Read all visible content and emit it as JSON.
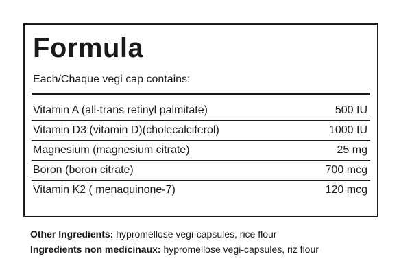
{
  "formula": {
    "title": "Formula",
    "subtitle": "Each/Chaque vegi cap contains:",
    "rows": [
      {
        "name": "Vitamin A (all-trans retinyl palmitate)",
        "amount": "500 IU"
      },
      {
        "name": "Vitamin D3 (vitamin D)(cholecalciferol)",
        "amount": "1000 IU"
      },
      {
        "name": "Magnesium (magnesium citrate)",
        "amount": "25 mg"
      },
      {
        "name": "Boron (boron citrate)",
        "amount": "700 mcg"
      },
      {
        "name": "Vitamin K2 ( menaquinone-7)",
        "amount": "120 mcg"
      }
    ]
  },
  "ingredients": {
    "other_label": "Other Ingredients:",
    "other_value": " hypromellose vegi-capsules, rice flour",
    "non_med_label": "Ingredients non medicinaux:",
    "non_med_value": " hypromellose vegi-capsules, riz flour"
  }
}
